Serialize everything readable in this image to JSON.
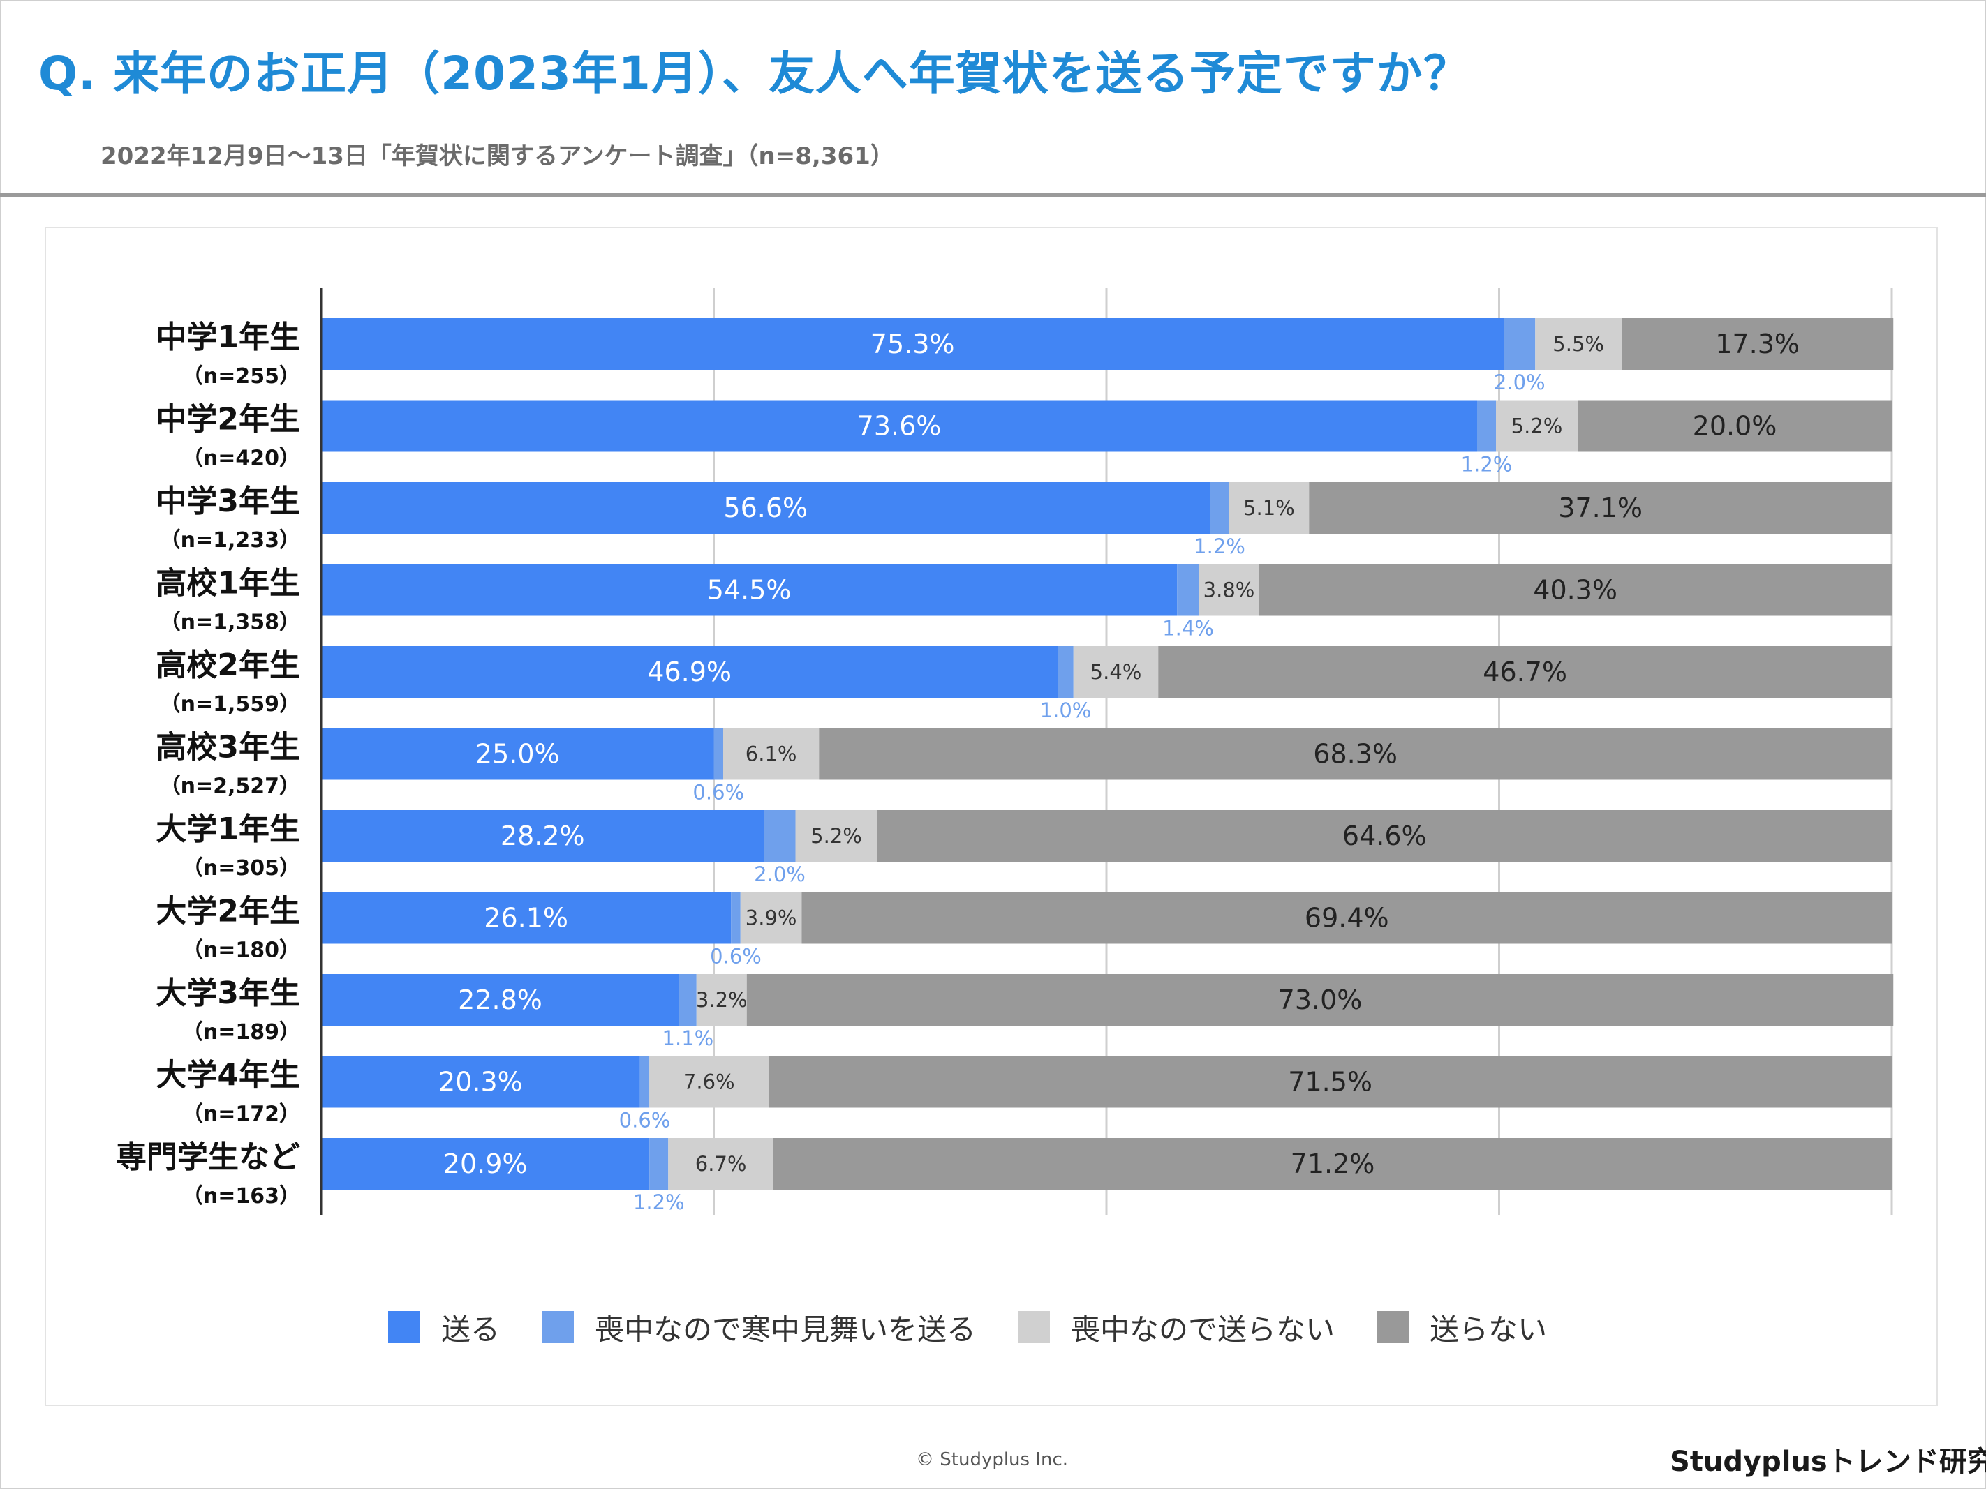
{
  "page": {
    "title": "Q. 来年のお正月（2023年1月）、友人へ年賀状を送る予定ですか？",
    "subtitle": "2022年12月9日〜13日「年賀状に関するアンケート調査」（n=8,361）",
    "copyright": "© Studyplus Inc.",
    "brand": "Studyplusトレンド研究所"
  },
  "chart_data": {
    "type": "bar",
    "orientation": "horizontal",
    "stacked": true,
    "xlim": [
      0,
      100
    ],
    "grid": true,
    "legend_position": "bottom",
    "categories": [
      "中学1年生",
      "中学2年生",
      "中学3年生",
      "高校1年生",
      "高校2年生",
      "高校3年生",
      "大学1年生",
      "大学2年生",
      "大学3年生",
      "大学4年生",
      "専門学生など"
    ],
    "sample_sizes": [
      "（n=255）",
      "（n=420）",
      "（n=1,233）",
      "（n=1,358）",
      "（n=1,559）",
      "（n=2,527）",
      "（n=305）",
      "（n=180）",
      "（n=189）",
      "（n=172）",
      "（n=163）"
    ],
    "series": [
      {
        "name": "送る",
        "color": "#4285f4",
        "label_color": "#ffffff",
        "values": [
          75.3,
          73.6,
          56.6,
          54.5,
          46.9,
          25.0,
          28.2,
          26.1,
          22.8,
          20.3,
          20.9
        ]
      },
      {
        "name": "喪中なので寒中見舞いを送る",
        "color": "#6fa0ec",
        "label_color": "#6fa0ec",
        "values": [
          2.0,
          1.2,
          1.2,
          1.4,
          1.0,
          0.6,
          2.0,
          0.6,
          1.1,
          0.6,
          1.2
        ]
      },
      {
        "name": "喪中なので送らない",
        "color": "#d0d0d0",
        "label_color": "#333333",
        "values": [
          5.5,
          5.2,
          5.1,
          3.8,
          5.4,
          6.1,
          5.2,
          3.9,
          3.2,
          7.6,
          6.7
        ]
      },
      {
        "name": "送らない",
        "color": "#999999",
        "label_color": "#222222",
        "values": [
          17.3,
          20.0,
          37.1,
          40.3,
          46.7,
          68.3,
          64.6,
          69.4,
          73.0,
          71.5,
          71.2
        ]
      }
    ]
  }
}
